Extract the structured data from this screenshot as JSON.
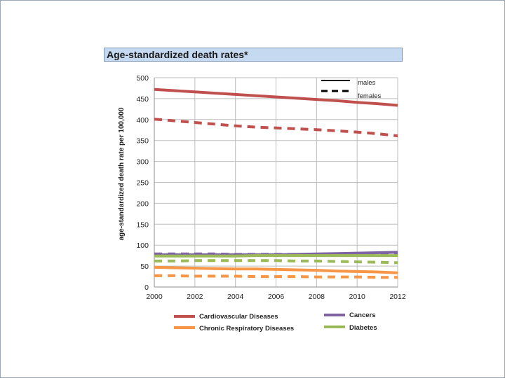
{
  "colors": {
    "cardiovascular": "#c0504d",
    "cancers": "#8064a2",
    "respiratory": "#f79646",
    "diabetes": "#9bbb59",
    "title_bg": "#c5d9f1"
  },
  "chart_data": {
    "type": "line",
    "title": "Age-standardized death rates*",
    "xlabel": "",
    "ylabel": "age-standardized death rate per 100,000",
    "xlim": [
      2000,
      2012
    ],
    "ylim": [
      0,
      500
    ],
    "x_ticks": [
      "2000",
      "2002",
      "2004",
      "2006",
      "2008",
      "2010",
      "2012"
    ],
    "y_ticks": [
      "0",
      "50",
      "100",
      "150",
      "200",
      "250",
      "300",
      "350",
      "400",
      "450",
      "500"
    ],
    "grid": true,
    "legend_style": {
      "males": "males",
      "females": "females"
    },
    "legend_position": "bottom",
    "x": [
      2000,
      2001,
      2002,
      2003,
      2004,
      2005,
      2006,
      2007,
      2008,
      2009,
      2010,
      2011,
      2012
    ],
    "series": [
      {
        "name": "Cardiovascular Diseases",
        "sex": "males",
        "style": "solid",
        "color_key": "cardiovascular",
        "values": [
          472,
          469,
          466,
          463,
          460,
          457,
          454,
          451,
          448,
          445,
          441,
          438,
          434
        ]
      },
      {
        "name": "Cardiovascular Diseases",
        "sex": "females",
        "style": "dashed",
        "color_key": "cardiovascular",
        "values": [
          401,
          397,
          393,
          389,
          385,
          382,
          380,
          378,
          376,
          373,
          370,
          366,
          361
        ]
      },
      {
        "name": "Cancers",
        "sex": "males",
        "style": "solid",
        "color_key": "cancers",
        "values": [
          77,
          77,
          77,
          77,
          77,
          77,
          77,
          78,
          79,
          80,
          81,
          82,
          83
        ]
      },
      {
        "name": "Cancers",
        "sex": "females",
        "style": "dashed",
        "color_key": "cancers",
        "values": [
          79,
          79,
          79,
          79,
          78,
          78,
          78,
          78,
          78,
          78,
          78,
          78,
          78
        ]
      },
      {
        "name": "Diabetes",
        "sex": "males",
        "style": "solid",
        "color_key": "diabetes",
        "values": [
          74,
          74,
          74,
          74,
          74,
          75,
          75,
          75,
          75,
          75,
          75,
          75,
          75
        ]
      },
      {
        "name": "Diabetes",
        "sex": "females",
        "style": "dashed",
        "color_key": "diabetes",
        "values": [
          62,
          62,
          63,
          63,
          63,
          63,
          63,
          62,
          62,
          61,
          60,
          59,
          58
        ]
      },
      {
        "name": "Chronic Respiratory Diseases",
        "sex": "males",
        "style": "solid",
        "color_key": "respiratory",
        "values": [
          47,
          46,
          45,
          44,
          43,
          43,
          42,
          41,
          40,
          38,
          37,
          36,
          34
        ]
      },
      {
        "name": "Chronic Respiratory Diseases",
        "sex": "females",
        "style": "dashed",
        "color_key": "respiratory",
        "values": [
          27,
          27,
          26,
          26,
          26,
          25,
          25,
          25,
          24,
          24,
          24,
          23,
          23
        ]
      }
    ],
    "legend": [
      {
        "label": "Cardiovascular Diseases",
        "color_key": "cardiovascular"
      },
      {
        "label": "Cancers",
        "color_key": "cancers"
      },
      {
        "label": "Chronic Respiratory Diseases",
        "color_key": "respiratory"
      },
      {
        "label": "Diabetes",
        "color_key": "diabetes"
      }
    ]
  }
}
